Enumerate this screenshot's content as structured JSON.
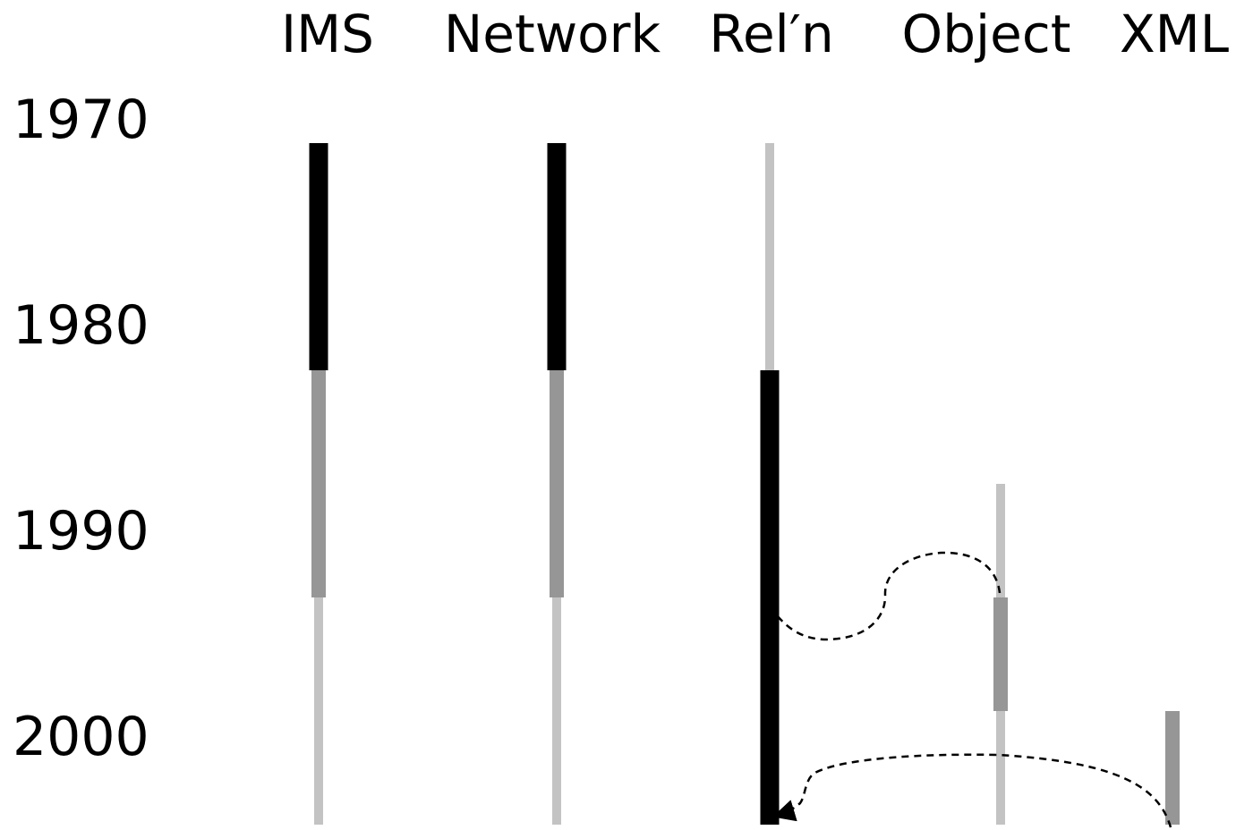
{
  "columns": [
    {
      "key": "ims",
      "label": "IMS"
    },
    {
      "key": "network",
      "label": "Network"
    },
    {
      "key": "reln",
      "label": "Rel′n"
    },
    {
      "key": "object",
      "label": "Object"
    },
    {
      "key": "xml",
      "label": "XML"
    }
  ],
  "years": [
    "1970",
    "1980",
    "1990",
    "2000"
  ],
  "colors": {
    "dominant": "#000000",
    "declining": "#969696",
    "minor": "#c3c3c3",
    "background": "#ffffff"
  },
  "bars": [
    {
      "column": "ims",
      "from": 1971,
      "to": 1981,
      "color": "dominant"
    },
    {
      "column": "ims",
      "from": 1981,
      "to": 1991,
      "color": "declining"
    },
    {
      "column": "ims",
      "from": 1991,
      "to": 2001,
      "color": "minor"
    },
    {
      "column": "network",
      "from": 1971,
      "to": 1981,
      "color": "dominant"
    },
    {
      "column": "network",
      "from": 1981,
      "to": 1991,
      "color": "declining"
    },
    {
      "column": "network",
      "from": 1991,
      "to": 2001,
      "color": "minor"
    },
    {
      "column": "reln",
      "from": 1971,
      "to": 1981,
      "color": "minor"
    },
    {
      "column": "reln",
      "from": 1981,
      "to": 2001,
      "color": "dominant"
    },
    {
      "column": "object",
      "from": 1986,
      "to": 1991,
      "color": "minor"
    },
    {
      "column": "object",
      "from": 1991,
      "to": 1996,
      "color": "declining"
    },
    {
      "column": "object",
      "from": 1996,
      "to": 2001,
      "color": "minor"
    },
    {
      "column": "xml",
      "from": 1996,
      "to": 2001,
      "color": "declining"
    }
  ],
  "flows": [
    {
      "from": "object",
      "to": "reln"
    },
    {
      "from": "xml",
      "to": "reln"
    }
  ]
}
